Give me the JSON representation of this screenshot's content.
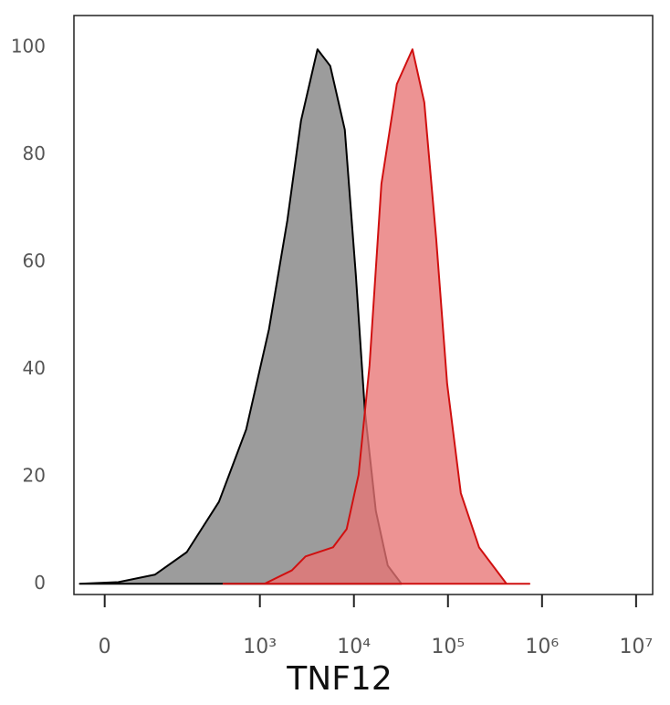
{
  "chart_data": {
    "type": "area",
    "x_label": "TNF12",
    "xscale": "asinh",
    "xlim": [
      -37,
      15000000
    ],
    "xticks": [
      0,
      {
        "value": 1000,
        "label": "10³"
      },
      {
        "value": 10000,
        "label": "10⁴"
      },
      {
        "value": 100000,
        "label": "10⁵"
      },
      {
        "value": 1000000,
        "label": "10⁶"
      },
      {
        "value": 10000000,
        "label": "10⁷"
      }
    ],
    "ylim": [
      -2,
      106
    ],
    "yticks": [
      0,
      20,
      40,
      60,
      80,
      100
    ],
    "grid": false,
    "series": [
      {
        "color": "#808080",
        "stroke": "#000000",
        "x": [
          -29,
          15,
          70,
          164,
          366,
          715,
          1250,
          1960,
          2740,
          4100,
          5600,
          8000,
          10480,
          13090,
          17100,
          22900,
          32000
        ],
        "values": [
          0,
          0.3,
          1.7,
          5.9,
          15.3,
          28.8,
          47.5,
          67.8,
          86.4,
          99.7,
          96.6,
          84.7,
          57.6,
          32.2,
          13.6,
          3.4,
          0
        ]
      },
      {
        "color": "#e87474",
        "stroke": "#d01010",
        "x": [
          409,
          1120,
          2190,
          3060,
          5990,
          8370,
          11200,
          14650,
          19600,
          28600,
          41900,
          56000,
          74900,
          98000,
          137000,
          214000,
          419000,
          735000
        ],
        "values": [
          0,
          0,
          2.5,
          5.1,
          6.8,
          10.2,
          20.3,
          40.7,
          74.6,
          93.2,
          99.7,
          89.8,
          64.4,
          37.3,
          16.9,
          6.8,
          0,
          0
        ]
      }
    ]
  }
}
